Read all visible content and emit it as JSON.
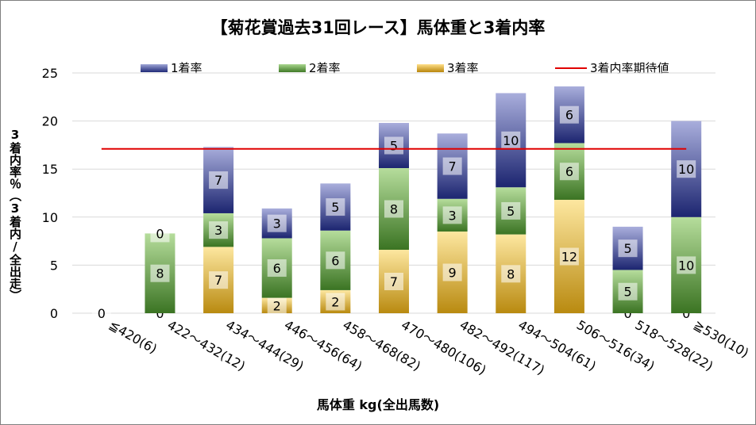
{
  "chart_data": {
    "type": "bar",
    "stacked": true,
    "title": "【菊花賞過去31回レース】馬体重と3着内率",
    "xlabel": "馬体重 kg(全出馬数)",
    "ylabel": "3着内率％（3着内/全出走）",
    "ylim": [
      0,
      25
    ],
    "yticks": [
      "0",
      "5",
      "10",
      "15",
      "20",
      "25"
    ],
    "grid": true,
    "legend_position": "top",
    "categories": [
      "≦420(6)",
      "422～432(12)",
      "434～444(29)",
      "446～456(64)",
      "458～468(82)",
      "470～480(106)",
      "482～492(117)",
      "494～504(61)",
      "506～516(34)",
      "518～528(22)",
      "≧530(10)"
    ],
    "series": [
      {
        "name": "3着率",
        "color": "#c9a226",
        "values": [
          0,
          0,
          6.9,
          1.6,
          2.4,
          6.6,
          8.5,
          8.2,
          11.8,
          0,
          0
        ],
        "counts": [
          "",
          "0",
          "7",
          "2",
          "2",
          "7",
          "9",
          "8",
          "12",
          "0",
          "0"
        ]
      },
      {
        "name": "2着率",
        "color": "#5a9e3a",
        "values": [
          0,
          8.3,
          3.5,
          6.2,
          6.2,
          8.5,
          3.4,
          4.9,
          5.9,
          4.5,
          10.0
        ],
        "counts": [
          "",
          "8",
          "3",
          "6",
          "6",
          "8",
          "3",
          "5",
          "6",
          "5",
          "10"
        ]
      },
      {
        "name": "1着率",
        "color": "#2e3a8c",
        "values": [
          0,
          0,
          6.9,
          3.1,
          4.9,
          4.7,
          6.8,
          9.8,
          5.9,
          4.5,
          10.0
        ],
        "counts": [
          "0",
          "0",
          "7",
          "3",
          "5",
          "5",
          "7",
          "10",
          "6",
          "5",
          "10"
        ]
      }
    ],
    "reference_line": {
      "name": "3着内率期待値",
      "value": 17.1,
      "color": "#e00000"
    }
  }
}
